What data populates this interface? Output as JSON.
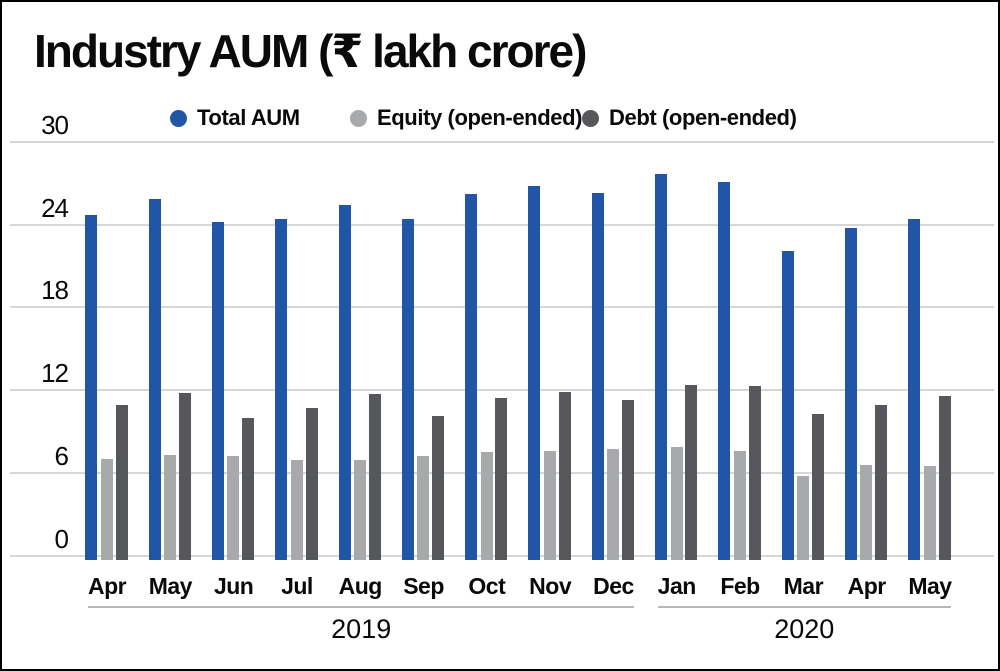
{
  "title": "Industry AUM (₹ lakh crore)",
  "colors": {
    "total_aum": "#2156a6",
    "equity": "#a7a9ab",
    "debt": "#55575b",
    "gridline": "#d5d7d9",
    "year_bracket": "#b5b8ba",
    "text": "#0a0a0a",
    "background": "#ffffff"
  },
  "chart_data": {
    "type": "bar",
    "title": "Industry AUM (₹ lakh crore)",
    "xlabel": "",
    "ylabel": "",
    "ylim": [
      0,
      30
    ],
    "yticks": [
      30,
      24,
      18,
      12,
      6,
      0
    ],
    "grid": "horizontal",
    "legend_position": "top",
    "categories": [
      "Apr",
      "May",
      "Jun",
      "Jul",
      "Aug",
      "Sep",
      "Oct",
      "Nov",
      "Dec",
      "Jan",
      "Feb",
      "Mar",
      "Apr",
      "May"
    ],
    "year_groups": [
      {
        "label": "2019",
        "from": 0,
        "to": 8
      },
      {
        "label": "2020",
        "from": 9,
        "to": 13
      }
    ],
    "series": [
      {
        "name": "Total AUM",
        "color": "#2156a6",
        "values": [
          24.7,
          25.9,
          24.2,
          24.4,
          25.4,
          24.4,
          26.2,
          26.8,
          26.3,
          27.7,
          27.1,
          22.1,
          23.8,
          24.4
        ]
      },
      {
        "name": "Equity (open-ended)",
        "color": "#a7a9ab",
        "values": [
          7.0,
          7.3,
          7.2,
          6.9,
          6.9,
          7.2,
          7.5,
          7.6,
          7.7,
          7.9,
          7.6,
          5.8,
          6.6,
          6.5
        ]
      },
      {
        "name": "Debt (open-ended)",
        "color": "#55575b",
        "values": [
          10.9,
          11.8,
          10.0,
          10.7,
          11.7,
          10.1,
          11.4,
          11.9,
          11.3,
          12.4,
          12.3,
          10.3,
          10.9,
          11.6
        ]
      }
    ]
  }
}
